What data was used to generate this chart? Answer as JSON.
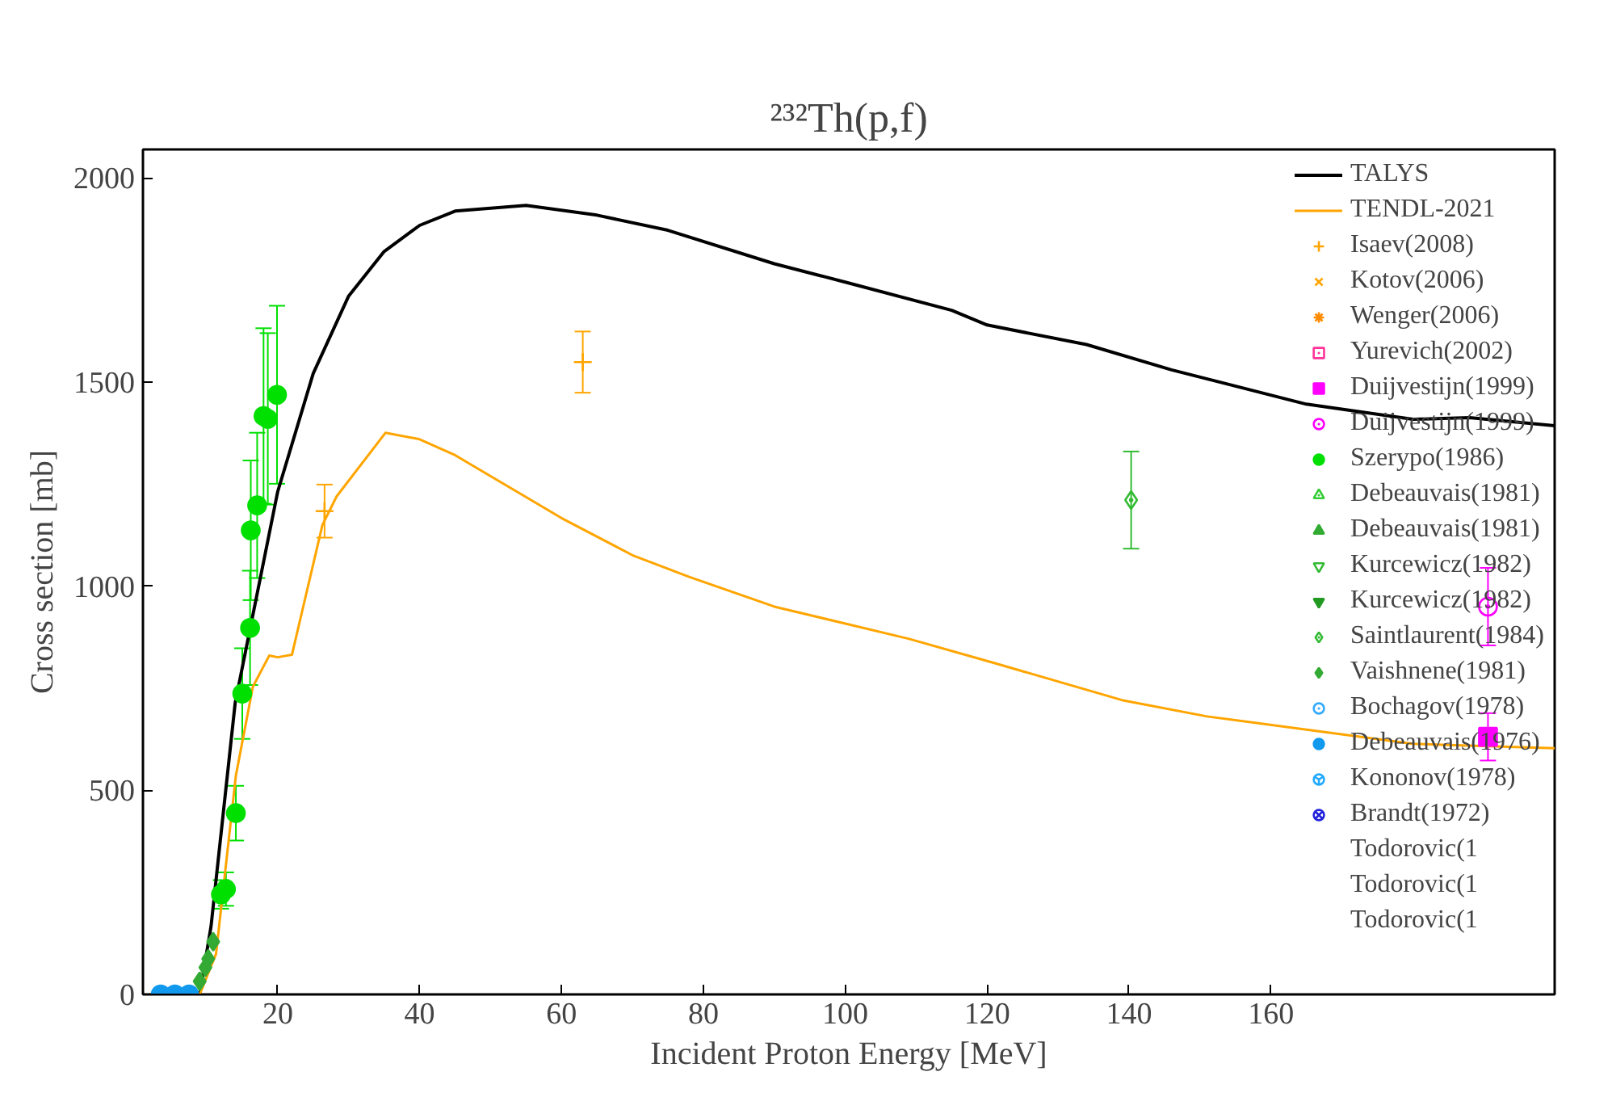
{
  "chart_data": {
    "type": "line",
    "title": "²³²Th(p,f)",
    "xlabel": "Incident Proton Energy [MeV]",
    "ylabel": "Cross section [mb]",
    "xlim": [
      1,
      200
    ],
    "ylim": [
      0,
      2070
    ],
    "xticks": [
      20,
      40,
      60,
      80,
      100,
      120,
      140,
      160
    ],
    "yticks": [
      0,
      500,
      1000,
      1500,
      2000
    ],
    "grid": false,
    "legend": "top right",
    "series": [
      {
        "name": "TALYS",
        "color": "#000000",
        "x": [
          2,
          9,
          10.6,
          14,
          20,
          25,
          30,
          35,
          40,
          45,
          55,
          65,
          75,
          90,
          100,
          115,
          120,
          134,
          146,
          165,
          180,
          188,
          200
        ],
        "values": [
          0,
          0,
          167,
          714,
          1232,
          1521,
          1711,
          1820,
          1884,
          1919,
          1933,
          1909,
          1872,
          1790,
          1745,
          1676,
          1640,
          1592,
          1530,
          1446,
          1409,
          1413,
          1393
        ]
      },
      {
        "name": "TENDL-2021",
        "color": "#ffa500",
        "x": [
          2,
          9,
          11.3,
          14.1,
          16.5,
          18.8,
          20,
          22,
          26.3,
          28.3,
          35.2,
          40,
          45,
          60,
          70,
          78,
          90,
          109,
          121,
          139,
          151,
          180,
          200
        ],
        "values": [
          0,
          0,
          99,
          536,
          754,
          830,
          826,
          832,
          1150,
          1220,
          1376,
          1360,
          1321,
          1167,
          1076,
          1023,
          950,
          871,
          812,
          721,
          681,
          614,
          603
        ]
      },
      {
        "name": "Isaev(2008)",
        "type": "scatter",
        "marker": "cross",
        "color": "#ffa500",
        "x": [
          26.6,
          63
        ],
        "values": [
          1184,
          1549
        ],
        "errors": [
          65,
          75
        ]
      },
      {
        "name": "Kotov(2006)",
        "type": "scatter",
        "marker": "x",
        "color": "#ffa500"
      },
      {
        "name": "Wenger(2006)",
        "type": "scatter",
        "marker": "asterisk",
        "color": "#ff8c00"
      },
      {
        "name": "Yurevich(2002)",
        "type": "scatter",
        "marker": "square_dot",
        "color": "#ff3399"
      },
      {
        "name": "Duijvestijn(1999)",
        "type": "scatter",
        "marker": "square",
        "color": "#ff00ff",
        "x": [
          190.6
        ],
        "values": [
          631
        ],
        "errors": [
          58
        ]
      },
      {
        "name": "Duijvestijn(1999)",
        "type": "scatter",
        "marker": "circle_dot",
        "color": "#ff00ff",
        "x": [
          190.6
        ],
        "values": [
          950
        ],
        "errors": [
          95
        ]
      },
      {
        "name": "Szerypo(1986)",
        "type": "scatter",
        "marker": "circle",
        "color": "#00e000",
        "x": [
          12.0,
          12.7,
          14.1,
          15.0,
          16.1,
          16.2,
          17.1,
          18.0,
          18.6,
          19.9
        ],
        "values": [
          245,
          258,
          444,
          737,
          898,
          1137,
          1198,
          1417,
          1410,
          1469
        ],
        "errors": [
          35,
          41,
          67,
          111,
          140,
          171,
          178,
          215,
          210,
          218
        ]
      },
      {
        "name": "Debeauvais(1981)",
        "type": "scatter",
        "marker": "triangle_dot",
        "color": "#33cc33"
      },
      {
        "name": "Debeauvais(1981)",
        "type": "scatter",
        "marker": "triangle",
        "color": "#33aa33"
      },
      {
        "name": "Kurcewicz(1982)",
        "type": "scatter",
        "marker": "inverted_triangle_dot",
        "color": "#33bb33"
      },
      {
        "name": "Kurcewicz(1982)",
        "type": "scatter",
        "marker": "inverted_triangle",
        "color": "#229922"
      },
      {
        "name": "Saintlaurent(1984)",
        "type": "scatter",
        "marker": "diamond_dot",
        "color": "#33bb33",
        "x": [
          140.3
        ],
        "values": [
          1211
        ],
        "errors": [
          119
        ]
      },
      {
        "name": "Vaishnene(1981)",
        "type": "scatter",
        "marker": "diamond",
        "color": "#33aa33",
        "x": [
          9.0,
          9.8,
          10.2,
          10.9
        ],
        "values": [
          32,
          66,
          87,
          129
        ]
      },
      {
        "name": "Bochagov(1978)",
        "type": "scatter",
        "marker": "circle_dot",
        "color": "#33aaff"
      },
      {
        "name": "Debeauvais(1976)",
        "type": "scatter",
        "marker": "circle",
        "color": "#1199ee",
        "x": [
          3.5,
          5.5,
          7.5
        ],
        "values": [
          0,
          0,
          0
        ]
      },
      {
        "name": "Kononov(1978)",
        "type": "scatter",
        "marker": "circle_y",
        "color": "#22aaff"
      },
      {
        "name": "Brandt(1972)",
        "type": "scatter",
        "marker": "circle_x",
        "color": "#2222dd"
      },
      {
        "name": "Todorovic(1",
        "type": "scatter",
        "marker": "none"
      },
      {
        "name": "Todorovic(1",
        "type": "scatter",
        "marker": "none"
      },
      {
        "name": "Todorovic(1",
        "type": "scatter",
        "marker": "none"
      }
    ]
  }
}
